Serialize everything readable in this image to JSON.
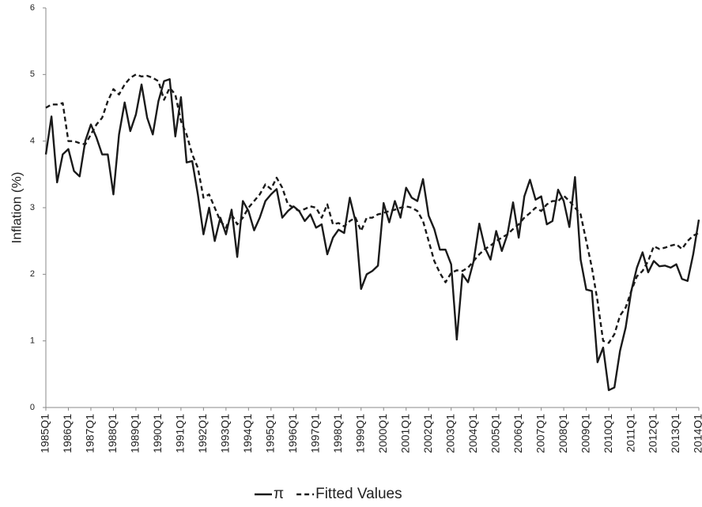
{
  "chart_data": {
    "type": "line",
    "y_label": "Inflation (%)",
    "categories": [
      "1985Q1",
      null,
      null,
      null,
      "1986Q1",
      null,
      null,
      null,
      "1987Q1",
      null,
      null,
      null,
      "1988Q1",
      null,
      null,
      null,
      "1989Q1",
      null,
      null,
      null,
      "1990Q1",
      null,
      null,
      null,
      "1991Q1",
      null,
      null,
      null,
      "1992Q1",
      null,
      null,
      null,
      "1993Q1",
      null,
      null,
      null,
      "1994Q1",
      null,
      null,
      null,
      "1995Q1",
      null,
      null,
      null,
      "1996Q1",
      null,
      null,
      null,
      "1997Q1",
      null,
      null,
      null,
      "1998Q1",
      null,
      null,
      null,
      "1999Q1",
      null,
      null,
      null,
      "2000Q1",
      null,
      null,
      null,
      "2001Q1",
      null,
      null,
      null,
      "2002Q1",
      null,
      null,
      null,
      "2003Q1",
      null,
      null,
      null,
      "2004Q1",
      null,
      null,
      null,
      "2005Q1",
      null,
      null,
      null,
      "2006Q1",
      null,
      null,
      null,
      "2007Q1",
      null,
      null,
      null,
      "2008Q1",
      null,
      null,
      null,
      "2009Q1",
      null,
      null,
      null,
      "2010Q1",
      null,
      null,
      null,
      "2011Q1",
      null,
      null,
      null,
      "2012Q1",
      null,
      null,
      null,
      "2013Q1",
      null,
      null,
      null,
      "2014Q1"
    ],
    "series": [
      {
        "name": "π",
        "color": "#1a1a1a",
        "style": "solid",
        "values": [
          3.8,
          4.37,
          3.38,
          3.8,
          3.88,
          3.55,
          3.47,
          4.0,
          4.25,
          4.05,
          3.8,
          3.8,
          3.2,
          4.1,
          4.58,
          4.15,
          4.4,
          4.85,
          4.35,
          4.1,
          4.6,
          4.9,
          4.93,
          4.07,
          4.66,
          3.68,
          3.7,
          3.2,
          2.6,
          3.0,
          2.5,
          2.85,
          2.6,
          2.97,
          2.26,
          3.1,
          2.95,
          2.66,
          2.85,
          3.1,
          3.2,
          3.28,
          2.85,
          2.95,
          3.02,
          2.95,
          2.8,
          2.9,
          2.7,
          2.75,
          2.3,
          2.55,
          2.67,
          2.62,
          3.15,
          2.8,
          1.78,
          2.0,
          2.05,
          2.13,
          3.07,
          2.78,
          3.1,
          2.85,
          3.3,
          3.15,
          3.1,
          3.43,
          2.88,
          2.68,
          2.37,
          2.37,
          2.15,
          1.02,
          2.0,
          1.88,
          2.2,
          2.76,
          2.4,
          2.22,
          2.65,
          2.35,
          2.6,
          3.08,
          2.55,
          3.17,
          3.42,
          3.12,
          3.17,
          2.75,
          2.8,
          3.27,
          3.1,
          2.71,
          3.46,
          2.22,
          1.77,
          1.75,
          0.68,
          0.9,
          0.26,
          0.3,
          0.85,
          1.2,
          1.75,
          2.1,
          2.33,
          2.03,
          2.2,
          2.12,
          2.13,
          2.1,
          2.15,
          1.93,
          1.9,
          2.3,
          2.82
        ]
      },
      {
        "name": "Fitted Values",
        "color": "#1a1a1a",
        "style": "dashed",
        "values": [
          4.5,
          4.55,
          4.55,
          4.57,
          4.0,
          4.0,
          3.97,
          3.95,
          4.1,
          4.25,
          4.35,
          4.6,
          4.78,
          4.7,
          4.85,
          4.95,
          5.0,
          4.97,
          4.98,
          4.95,
          4.9,
          4.62,
          4.8,
          4.7,
          4.3,
          4.1,
          3.8,
          3.6,
          3.15,
          3.2,
          3.0,
          2.8,
          2.7,
          2.9,
          2.75,
          2.85,
          3.0,
          3.1,
          3.2,
          3.35,
          3.28,
          3.45,
          3.3,
          3.05,
          3.0,
          2.95,
          2.98,
          3.02,
          3.0,
          2.85,
          3.05,
          2.75,
          2.77,
          2.72,
          2.8,
          2.85,
          2.65,
          2.85,
          2.85,
          2.9,
          2.92,
          2.95,
          2.97,
          3.0,
          3.02,
          3.0,
          2.95,
          2.8,
          2.5,
          2.2,
          2.02,
          1.88,
          2.02,
          2.06,
          2.05,
          2.1,
          2.2,
          2.3,
          2.38,
          2.43,
          2.5,
          2.55,
          2.6,
          2.68,
          2.75,
          2.85,
          2.92,
          3.0,
          2.95,
          3.05,
          3.1,
          3.1,
          3.18,
          3.1,
          3.0,
          2.9,
          2.5,
          2.1,
          1.6,
          1.0,
          0.97,
          1.1,
          1.38,
          1.5,
          1.75,
          1.97,
          2.05,
          2.2,
          2.42,
          2.38,
          2.4,
          2.43,
          2.45,
          2.38,
          2.5,
          2.58,
          2.62
        ]
      }
    ],
    "ylim": [
      0,
      6
    ],
    "yticks": [
      0,
      1,
      2,
      3,
      4,
      5,
      6
    ],
    "grid": false,
    "legend": "bottom"
  }
}
